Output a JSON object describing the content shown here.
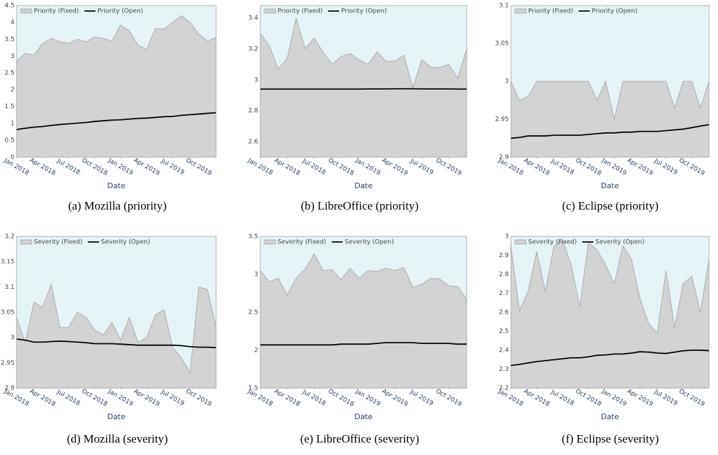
{
  "chart_data": [
    {
      "type": "area",
      "caption": "(a) Mozilla (priority)",
      "xlabel": "Date",
      "legend": "top-left",
      "grid": false,
      "x": [
        "2018-01",
        "2018-02",
        "2018-03",
        "2018-04",
        "2018-05",
        "2018-06",
        "2018-07",
        "2018-08",
        "2018-09",
        "2018-10",
        "2018-11",
        "2018-12",
        "2019-01",
        "2019-02",
        "2019-03",
        "2019-04",
        "2019-05",
        "2019-06",
        "2019-07",
        "2019-08",
        "2019-09",
        "2019-10",
        "2019-11",
        "2019-12"
      ],
      "xticks": [
        {
          "value": "2018-01",
          "label": "Jan 2018"
        },
        {
          "value": "2018-04",
          "label": "Apr 2018"
        },
        {
          "value": "2018-07",
          "label": "Jul 2018"
        },
        {
          "value": "2018-10",
          "label": "Oct 2018"
        },
        {
          "value": "2019-01",
          "label": "Jan 2019"
        },
        {
          "value": "2019-04",
          "label": "Apr 2019"
        },
        {
          "value": "2019-07",
          "label": "Jul 2019"
        },
        {
          "value": "2019-10",
          "label": "Oct 2019"
        }
      ],
      "ylim": [
        0,
        4.5
      ],
      "yticks": [
        0,
        0.5,
        1,
        1.5,
        2,
        2.5,
        3,
        3.5,
        4,
        4.5
      ],
      "series": [
        {
          "name": "Priority (Fixed)",
          "color": "#d3d3d3",
          "mark": "area",
          "values": [
            2.85,
            3.08,
            3.03,
            3.38,
            3.52,
            3.42,
            3.38,
            3.5,
            3.42,
            3.57,
            3.52,
            3.45,
            3.92,
            3.75,
            3.32,
            3.2,
            3.82,
            3.8,
            4.0,
            4.2,
            4.0,
            3.65,
            3.45,
            3.55
          ]
        },
        {
          "name": "Priority (Open)",
          "color": "#000000",
          "mark": "line",
          "values": [
            0.82,
            0.86,
            0.89,
            0.91,
            0.94,
            0.97,
            0.99,
            1.01,
            1.03,
            1.06,
            1.08,
            1.1,
            1.11,
            1.13,
            1.15,
            1.16,
            1.18,
            1.2,
            1.21,
            1.24,
            1.26,
            1.28,
            1.3,
            1.32
          ]
        }
      ]
    },
    {
      "type": "area",
      "caption": "(b) LibreOffice (priority)",
      "xlabel": "Date",
      "legend": "top-left",
      "grid": false,
      "x": [
        "2018-01",
        "2018-02",
        "2018-03",
        "2018-04",
        "2018-05",
        "2018-06",
        "2018-07",
        "2018-08",
        "2018-09",
        "2018-10",
        "2018-11",
        "2018-12",
        "2019-01",
        "2019-02",
        "2019-03",
        "2019-04",
        "2019-05",
        "2019-06",
        "2019-07",
        "2019-08",
        "2019-09",
        "2019-10",
        "2019-11",
        "2019-12"
      ],
      "xticks": [
        {
          "value": "2018-01",
          "label": "Jan 2018"
        },
        {
          "value": "2018-04",
          "label": "Apr 2018"
        },
        {
          "value": "2018-07",
          "label": "Jul 2018"
        },
        {
          "value": "2018-10",
          "label": "Oct 2018"
        },
        {
          "value": "2019-01",
          "label": "Jan 2019"
        },
        {
          "value": "2019-04",
          "label": "Apr 2019"
        },
        {
          "value": "2019-07",
          "label": "Jul 2019"
        },
        {
          "value": "2019-10",
          "label": "Oct 2019"
        }
      ],
      "ylim": [
        2.5,
        3.48
      ],
      "yticks": [
        2.6,
        2.8,
        3,
        3.2,
        3.4
      ],
      "series": [
        {
          "name": "Priority (Fixed)",
          "color": "#d3d3d3",
          "mark": "area",
          "values": [
            3.3,
            3.22,
            3.07,
            3.14,
            3.4,
            3.2,
            3.27,
            3.18,
            3.1,
            3.15,
            3.17,
            3.13,
            3.1,
            3.18,
            3.12,
            3.12,
            3.16,
            2.95,
            3.13,
            3.08,
            3.08,
            3.1,
            3.01,
            3.2
          ]
        },
        {
          "name": "Priority (Open)",
          "color": "#000000",
          "mark": "line",
          "values": [
            2.94,
            2.94,
            2.94,
            2.94,
            2.94,
            2.94,
            2.94,
            2.94,
            2.94,
            2.94,
            2.94,
            2.94,
            2.941,
            2.941,
            2.941,
            2.942,
            2.942,
            2.942,
            2.941,
            2.941,
            2.941,
            2.941,
            2.94,
            2.94
          ]
        }
      ]
    },
    {
      "type": "area",
      "caption": "(c) Eclipse (priority)",
      "xlabel": "Date",
      "legend": "top-left",
      "grid": false,
      "x": [
        "2018-01",
        "2018-02",
        "2018-03",
        "2018-04",
        "2018-05",
        "2018-06",
        "2018-07",
        "2018-08",
        "2018-09",
        "2018-10",
        "2018-11",
        "2018-12",
        "2019-01",
        "2019-02",
        "2019-03",
        "2019-04",
        "2019-05",
        "2019-06",
        "2019-07",
        "2019-08",
        "2019-09",
        "2019-10",
        "2019-11",
        "2019-12"
      ],
      "xticks": [
        {
          "value": "2018-01",
          "label": "Jan 2018"
        },
        {
          "value": "2018-04",
          "label": "Apr 2018"
        },
        {
          "value": "2018-07",
          "label": "Jul 2018"
        },
        {
          "value": "2018-10",
          "label": "Oct 2018"
        },
        {
          "value": "2019-01",
          "label": "Jan 2019"
        },
        {
          "value": "2019-04",
          "label": "Apr 2019"
        },
        {
          "value": "2019-07",
          "label": "Jul 2019"
        },
        {
          "value": "2019-10",
          "label": "Oct 2019"
        }
      ],
      "ylim": [
        2.9,
        3.1
      ],
      "yticks": [
        2.9,
        2.95,
        3,
        3.05,
        3.1
      ],
      "series": [
        {
          "name": "Priority (Fixed)",
          "color": "#d3d3d3",
          "mark": "area",
          "values": [
            3.0,
            2.975,
            2.98,
            3.0,
            3.0,
            3.0,
            3.0,
            3.0,
            3.0,
            3.0,
            2.975,
            3.0,
            2.95,
            3.0,
            3.0,
            3.0,
            3.0,
            3.0,
            3.0,
            2.965,
            3.0,
            3.0,
            2.965,
            3.0
          ]
        },
        {
          "name": "Priority (Open)",
          "color": "#000000",
          "mark": "line",
          "values": [
            2.925,
            2.926,
            2.928,
            2.928,
            2.928,
            2.929,
            2.929,
            2.929,
            2.929,
            2.93,
            2.931,
            2.932,
            2.932,
            2.933,
            2.933,
            2.934,
            2.934,
            2.934,
            2.935,
            2.936,
            2.937,
            2.939,
            2.941,
            2.943
          ]
        }
      ]
    },
    {
      "type": "area",
      "caption": "(d) Mozilla (severity)",
      "xlabel": "Date",
      "legend": "top-left",
      "grid": false,
      "x": [
        "2018-01",
        "2018-02",
        "2018-03",
        "2018-04",
        "2018-05",
        "2018-06",
        "2018-07",
        "2018-08",
        "2018-09",
        "2018-10",
        "2018-11",
        "2018-12",
        "2019-01",
        "2019-02",
        "2019-03",
        "2019-04",
        "2019-05",
        "2019-06",
        "2019-07",
        "2019-08",
        "2019-09",
        "2019-10",
        "2019-11",
        "2019-12"
      ],
      "xticks": [
        {
          "value": "2018-01",
          "label": "Jan 2018"
        },
        {
          "value": "2018-04",
          "label": "Apr 2018"
        },
        {
          "value": "2018-07",
          "label": "Jul 2018"
        },
        {
          "value": "2018-10",
          "label": "Oct 2018"
        },
        {
          "value": "2019-01",
          "label": "Jan 2019"
        },
        {
          "value": "2019-04",
          "label": "Apr 2019"
        },
        {
          "value": "2019-07",
          "label": "Jul 2019"
        },
        {
          "value": "2019-10",
          "label": "Oct 2019"
        }
      ],
      "ylim": [
        2.9,
        3.2
      ],
      "yticks": [
        2.9,
        2.95,
        3,
        3.05,
        3.1,
        3.15,
        3.2
      ],
      "series": [
        {
          "name": "Severity (Fixed)",
          "color": "#d3d3d3",
          "mark": "area",
          "values": [
            3.04,
            2.99,
            3.07,
            3.06,
            3.105,
            3.02,
            3.02,
            3.05,
            3.04,
            3.015,
            3.005,
            3.03,
            2.995,
            3.04,
            2.99,
            3.0,
            3.045,
            3.055,
            2.98,
            2.96,
            2.93,
            3.1,
            3.095,
            3.02
          ]
        },
        {
          "name": "Severity (Open)",
          "color": "#000000",
          "mark": "line",
          "values": [
            2.997,
            2.995,
            2.991,
            2.991,
            2.992,
            2.993,
            2.992,
            2.991,
            2.99,
            2.988,
            2.988,
            2.988,
            2.987,
            2.986,
            2.985,
            2.985,
            2.985,
            2.985,
            2.985,
            2.984,
            2.982,
            2.981,
            2.981,
            2.98
          ]
        }
      ]
    },
    {
      "type": "area",
      "caption": "(e) LibreOffice (severity)",
      "xlabel": "Date",
      "legend": "top-left",
      "grid": false,
      "x": [
        "2018-01",
        "2018-02",
        "2018-03",
        "2018-04",
        "2018-05",
        "2018-06",
        "2018-07",
        "2018-08",
        "2018-09",
        "2018-10",
        "2018-11",
        "2018-12",
        "2019-01",
        "2019-02",
        "2019-03",
        "2019-04",
        "2019-05",
        "2019-06",
        "2019-07",
        "2019-08",
        "2019-09",
        "2019-10",
        "2019-11",
        "2019-12"
      ],
      "xticks": [
        {
          "value": "2018-01",
          "label": "Jan 2018"
        },
        {
          "value": "2018-04",
          "label": "Apr 2018"
        },
        {
          "value": "2018-07",
          "label": "Jul 2018"
        },
        {
          "value": "2018-10",
          "label": "Oct 2018"
        },
        {
          "value": "2019-01",
          "label": "Jan 2019"
        },
        {
          "value": "2019-04",
          "label": "Apr 2019"
        },
        {
          "value": "2019-07",
          "label": "Jul 2019"
        },
        {
          "value": "2019-10",
          "label": "Oct 2019"
        }
      ],
      "ylim": [
        1.5,
        3.5
      ],
      "yticks": [
        1.5,
        2,
        2.5,
        3,
        3.5
      ],
      "series": [
        {
          "name": "Severity (Fixed)",
          "color": "#d3d3d3",
          "mark": "area",
          "values": [
            3.05,
            2.9,
            2.95,
            2.73,
            2.95,
            3.07,
            3.27,
            3.05,
            3.06,
            2.93,
            3.08,
            2.95,
            3.05,
            3.04,
            3.08,
            3.05,
            3.09,
            2.83,
            2.87,
            2.95,
            2.94,
            2.85,
            2.84,
            2.67
          ]
        },
        {
          "name": "Severity (Open)",
          "color": "#000000",
          "mark": "line",
          "values": [
            2.07,
            2.07,
            2.07,
            2.07,
            2.07,
            2.07,
            2.07,
            2.07,
            2.07,
            2.08,
            2.08,
            2.08,
            2.08,
            2.09,
            2.1,
            2.1,
            2.1,
            2.1,
            2.09,
            2.09,
            2.09,
            2.09,
            2.08,
            2.08
          ]
        }
      ]
    },
    {
      "type": "area",
      "caption": "(f) Eclipse (severity)",
      "xlabel": "Date",
      "legend": "top-left",
      "grid": false,
      "x": [
        "2018-01",
        "2018-02",
        "2018-03",
        "2018-04",
        "2018-05",
        "2018-06",
        "2018-07",
        "2018-08",
        "2018-09",
        "2018-10",
        "2018-11",
        "2018-12",
        "2019-01",
        "2019-02",
        "2019-03",
        "2019-04",
        "2019-05",
        "2019-06",
        "2019-07",
        "2019-08",
        "2019-09",
        "2019-10",
        "2019-11",
        "2019-12"
      ],
      "xticks": [
        {
          "value": "2018-01",
          "label": "Jan 2018"
        },
        {
          "value": "2018-04",
          "label": "Apr 2018"
        },
        {
          "value": "2018-07",
          "label": "Jul 2018"
        },
        {
          "value": "2018-10",
          "label": "Oct 2018"
        },
        {
          "value": "2019-01",
          "label": "Jan 2019"
        },
        {
          "value": "2019-04",
          "label": "Apr 2019"
        },
        {
          "value": "2019-07",
          "label": "Jul 2019"
        },
        {
          "value": "2019-10",
          "label": "Oct 2019"
        }
      ],
      "ylim": [
        2.2,
        3
      ],
      "yticks": [
        2.2,
        2.3,
        2.4,
        2.5,
        2.6,
        2.7,
        2.8,
        2.9,
        3
      ],
      "series": [
        {
          "name": "Severity (Fixed)",
          "color": "#d3d3d3",
          "mark": "area",
          "values": [
            2.95,
            2.61,
            2.71,
            2.92,
            2.71,
            2.95,
            2.98,
            2.85,
            2.63,
            2.97,
            2.93,
            2.85,
            2.75,
            2.95,
            2.88,
            2.67,
            2.54,
            2.49,
            2.82,
            2.52,
            2.75,
            2.79,
            2.6,
            2.88
          ]
        },
        {
          "name": "Severity (Open)",
          "color": "#000000",
          "mark": "line",
          "values": [
            2.32,
            2.325,
            2.333,
            2.34,
            2.345,
            2.35,
            2.355,
            2.36,
            2.36,
            2.365,
            2.373,
            2.375,
            2.38,
            2.38,
            2.385,
            2.392,
            2.39,
            2.385,
            2.383,
            2.39,
            2.397,
            2.4,
            2.4,
            2.398
          ]
        }
      ]
    }
  ]
}
